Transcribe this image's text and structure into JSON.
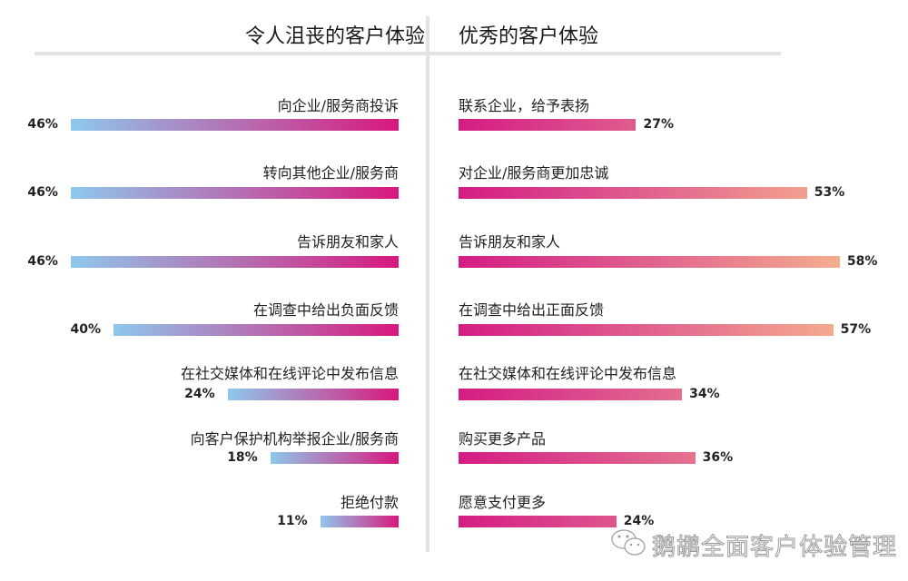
{
  "chart_data": [
    {
      "type": "bar",
      "orientation": "horizontal",
      "title": "令人沮丧的客户体验",
      "categories": [
        "向企业/服务商投诉",
        "转向其他企业/服务商",
        "告诉朋友和家人",
        "在调查中给出负面反馈",
        "在社交媒体和在线评论中发布信息",
        "向客户保护机构举报企业/服务商",
        "拒绝付款"
      ],
      "values": [
        46,
        46,
        46,
        40,
        24,
        18,
        11
      ],
      "value_labels": [
        "46%",
        "46%",
        "46%",
        "40%",
        "24%",
        "18%",
        "11%"
      ],
      "direction": "right-to-left",
      "colors": {
        "start": "#8ec8ec",
        "end": "#d8177e"
      }
    },
    {
      "type": "bar",
      "orientation": "horizontal",
      "title": "优秀的客户体验",
      "categories": [
        "联系企业，给予表扬",
        "对企业/服务商更加忠诚",
        "告诉朋友和家人",
        "在调查中给出正面反馈",
        "在社交媒体和在线评论中发布信息",
        "购买更多产品",
        "愿意支付更多"
      ],
      "values": [
        27,
        53,
        58,
        57,
        34,
        36,
        24
      ],
      "value_labels": [
        "27%",
        "53%",
        "58%",
        "57%",
        "34%",
        "36%",
        "24%"
      ],
      "direction": "left-to-right",
      "colors": {
        "start": "#d41c84",
        "end": "#f4ad8e"
      }
    }
  ],
  "watermark": {
    "text": "鹅鹕全面客户体验管理",
    "icon": "wechat-icon"
  }
}
